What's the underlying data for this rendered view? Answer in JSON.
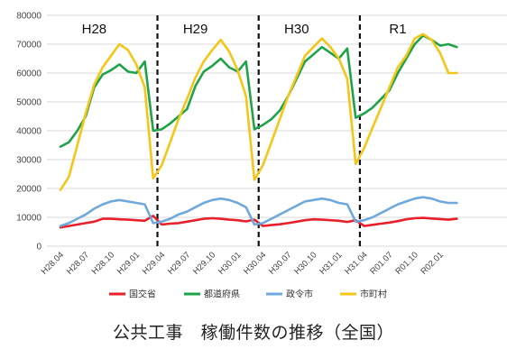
{
  "chart_data": {
    "type": "line",
    "title": "",
    "xlabel": "",
    "ylabel": "",
    "ylim": [
      0,
      80000
    ],
    "yticks": [
      0,
      10000,
      20000,
      30000,
      40000,
      50000,
      60000,
      70000,
      80000
    ],
    "ytick_labels": [
      "0",
      "10000",
      "20000",
      "30000",
      "40000",
      "50000",
      "60000",
      "70000",
      "80000"
    ],
    "xtick_labels": [
      "H28.04",
      "H28.07",
      "H28.10",
      "H29.01",
      "H29.04",
      "H29.07",
      "H29.10",
      "H30.01",
      "H30.04",
      "H30.07",
      "H30.10",
      "H31.01",
      "H31.04",
      "R01.07",
      "R01.10",
      "R02.01"
    ],
    "grid": "horizontal",
    "legend_position": "bottom",
    "eras": [
      {
        "label": "H28",
        "month_index": 4
      },
      {
        "label": "H29",
        "month_index": 16
      },
      {
        "label": "H30",
        "month_index": 28
      },
      {
        "label": "R1",
        "month_index": 40
      }
    ],
    "dividers_at_month_index": [
      11.5,
      23.5,
      35.5
    ],
    "series": [
      {
        "name": "国交省",
        "color": "#e8202a",
        "values": [
          6500,
          7000,
          7500,
          8000,
          8500,
          9500,
          9500,
          9300,
          9200,
          9000,
          8800,
          10500,
          7500,
          7800,
          8000,
          8500,
          9000,
          9500,
          9700,
          9500,
          9200,
          9000,
          8600,
          9200,
          7000,
          7300,
          7600,
          8000,
          8500,
          9000,
          9300,
          9200,
          9000,
          8800,
          8400,
          9000,
          7000,
          7400,
          7800,
          8200,
          8700,
          9300,
          9700,
          9800,
          9600,
          9400,
          9200,
          9500
        ]
      },
      {
        "name": "都道府県",
        "color": "#1fa34a",
        "values": [
          34500,
          36000,
          40000,
          45000,
          55000,
          59500,
          61000,
          63000,
          60500,
          60000,
          64000,
          40000,
          40500,
          42500,
          45000,
          47500,
          55500,
          60500,
          62500,
          65000,
          62000,
          60500,
          64000,
          40500,
          42000,
          44000,
          47000,
          52000,
          58000,
          64000,
          66500,
          69000,
          67000,
          65000,
          68500,
          44500,
          46000,
          48000,
          51000,
          54000,
          60000,
          65000,
          70000,
          73000,
          71500,
          69500,
          70000,
          69000
        ]
      },
      {
        "name": "政令市",
        "color": "#6fa8dc",
        "values": [
          7000,
          8000,
          9500,
          11000,
          13000,
          14500,
          15500,
          16000,
          15500,
          15000,
          14500,
          8000,
          8500,
          9500,
          11000,
          12000,
          13500,
          15000,
          16000,
          16500,
          16000,
          15000,
          13500,
          7500,
          8000,
          9500,
          11000,
          12500,
          14000,
          15500,
          16000,
          16500,
          16000,
          15000,
          14500,
          8500,
          9000,
          10000,
          11500,
          13000,
          14500,
          15500,
          16500,
          17000,
          16500,
          15500,
          15000,
          15000
        ]
      },
      {
        "name": "市町村",
        "color": "#f5c518",
        "values": [
          19500,
          24000,
          35000,
          46000,
          56000,
          62000,
          66000,
          70000,
          68000,
          63000,
          55000,
          23500,
          28000,
          36000,
          44000,
          51000,
          58500,
          64000,
          68000,
          71500,
          67500,
          61000,
          52000,
          23000,
          28000,
          36000,
          44000,
          52000,
          59000,
          66000,
          69000,
          72000,
          69000,
          65000,
          58000,
          28500,
          34000,
          41000,
          48000,
          55000,
          62000,
          66000,
          72000,
          73500,
          71500,
          67000,
          60000,
          60000
        ]
      }
    ]
  },
  "caption": "公共工事　稼働件数の推移（全国）"
}
